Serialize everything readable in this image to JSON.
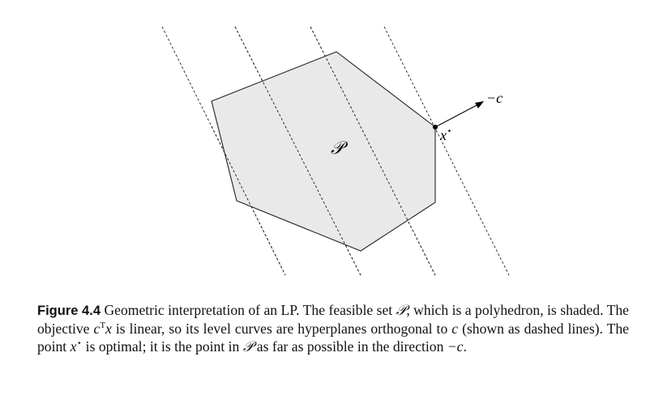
{
  "figure": {
    "polyhedron_label": "𝒫",
    "optimal_label": "x",
    "optimal_label_sup": "⋆",
    "direction_label": "−c"
  },
  "caption": {
    "label": "Figure 4.4",
    "t1": " Geometric interpretation of an LP. The feasible set ",
    "set": "𝒫",
    "t2": ", which is a polyhedron, is shaded. The objective ",
    "obj_c": "c",
    "obj_sup": "T",
    "obj_x": "x",
    "t3": " is linear, so its level curves are hyperplanes orthogonal to ",
    "c1": "c",
    "t4": " (shown as dashed lines). The point ",
    "xstar": "x",
    "xstar_sup": "⋆",
    "t5": " is optimal; it is the point in ",
    "set2": "𝒫",
    "t6": " as far as possible in the direction ",
    "dir": "−c",
    "t7": "."
  }
}
